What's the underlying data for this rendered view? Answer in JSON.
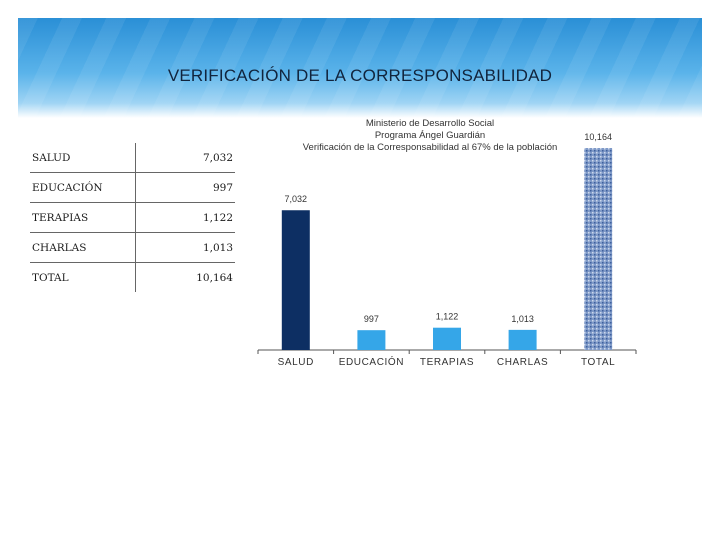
{
  "page": {
    "title": "VERIFICACIÓN DE LA CORRESPONSABILIDAD"
  },
  "table": {
    "rows": [
      {
        "label": "SALUD",
        "value": "7,032"
      },
      {
        "label": "EDUCACIÓN",
        "value": "997"
      },
      {
        "label": "TERAPIAS",
        "value": "1,122"
      },
      {
        "label": "CHARLAS",
        "value": "1,013"
      },
      {
        "label": "TOTAL",
        "value": "10,164"
      }
    ]
  },
  "chart_data": {
    "type": "bar",
    "title": "Ministerio de Desarrollo Social",
    "subtitle": "Programa Ángel Guardián",
    "subtitle2": "Verificación de la Corresponsabilidad al 67% de la población",
    "categories": [
      "SALUD",
      "EDUCACIÓN",
      "TERAPIAS",
      "CHARLAS",
      "TOTAL"
    ],
    "values": [
      7032,
      997,
      1122,
      1013,
      10164
    ],
    "data_labels": [
      "7,032",
      "997",
      "1,122",
      "1,013",
      "10,164"
    ],
    "bar_colors": [
      "#0d2f63",
      "#35a6e8",
      "#35a6e8",
      "#35a6e8",
      "#7f9ac8"
    ],
    "xlabel": "",
    "ylabel": "",
    "grid": false,
    "legend": "none"
  }
}
